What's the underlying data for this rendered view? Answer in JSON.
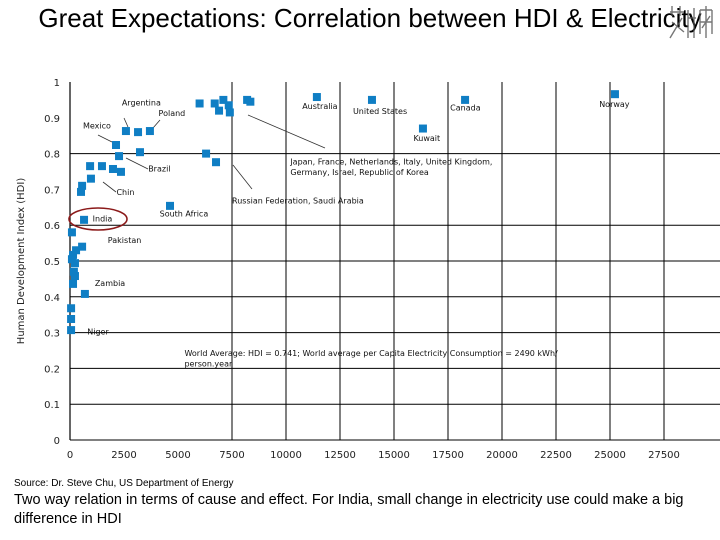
{
  "title": "Great Expectations: Correlation between HDI & Electricity",
  "logo_text": "艾华",
  "source": "Source: Dr. Steve Chu, US Department of Energy",
  "caption": "Two way relation in terms of cause and effect. For India, small change in electricity use could make a big difference in HDI",
  "chart_data": {
    "type": "scatter",
    "title": "",
    "xlabel": "",
    "ylabel": "Human Development Index (HDI)",
    "xlim": [
      0,
      27500
    ],
    "ylim": [
      0,
      1
    ],
    "xticks": [
      "0",
      "2500",
      "5000",
      "7500",
      "10000",
      "12500",
      "15000",
      "17500",
      "20000",
      "22500",
      "25000",
      "27500"
    ],
    "yticks": [
      "0",
      "0.1",
      "0.2",
      "0.3",
      "0.4",
      "0.5",
      "0.6",
      "0.7",
      "0.8",
      "0.9",
      "1"
    ],
    "grid": true,
    "marker_color": "#0f7ec4",
    "highlight_color": "#8b1a1a",
    "points": [
      [
        6000,
        0.94
      ],
      [
        6700,
        0.94
      ],
      [
        6900,
        0.92
      ],
      [
        7100,
        0.95
      ],
      [
        7350,
        0.935
      ],
      [
        7400,
        0.915
      ],
      [
        8200,
        0.95
      ],
      [
        8350,
        0.945
      ],
      [
        11430,
        0.958
      ],
      [
        13980,
        0.95
      ],
      [
        18290,
        0.95
      ],
      [
        16340,
        0.87
      ],
      [
        25230,
        0.966
      ],
      [
        2590,
        0.863
      ],
      [
        3150,
        0.86
      ],
      [
        3700,
        0.863
      ],
      [
        2130,
        0.824
      ],
      [
        2270,
        0.793
      ],
      [
        3240,
        0.804
      ],
      [
        6300,
        0.8
      ],
      [
        6760,
        0.776
      ],
      [
        930,
        0.765
      ],
      [
        1480,
        0.765
      ],
      [
        1990,
        0.757
      ],
      [
        2360,
        0.749
      ],
      [
        970,
        0.73
      ],
      [
        560,
        0.71
      ],
      [
        510,
        0.693
      ],
      [
        4630,
        0.654
      ],
      [
        650,
        0.615
      ],
      [
        90,
        0.58
      ],
      [
        560,
        0.54
      ],
      [
        280,
        0.53
      ],
      [
        140,
        0.517
      ],
      [
        90,
        0.505
      ],
      [
        230,
        0.494
      ],
      [
        180,
        0.47
      ],
      [
        230,
        0.458
      ],
      [
        140,
        0.436
      ],
      [
        690,
        0.408
      ],
      [
        50,
        0.368
      ],
      [
        50,
        0.338
      ],
      [
        50,
        0.307
      ]
    ],
    "annotations": [
      {
        "text": "Argentina",
        "x": 2400,
        "y": 0.935
      },
      {
        "text": "Poland",
        "x": 4100,
        "y": 0.905
      },
      {
        "text": "Mexico",
        "x": 600,
        "y": 0.87
      },
      {
        "text": "Brazil",
        "x": 3620,
        "y": 0.75
      },
      {
        "text": "Chin",
        "x": 2150,
        "y": 0.685
      },
      {
        "text": "India",
        "x": 1050,
        "y": 0.61
      },
      {
        "text": "South Africa",
        "x": 4150,
        "y": 0.625
      },
      {
        "text": "Pakistan",
        "x": 1750,
        "y": 0.55
      },
      {
        "text": "Zambia",
        "x": 1150,
        "y": 0.43
      },
      {
        "text": "Niger",
        "x": 800,
        "y": 0.295
      },
      {
        "text": "Australia",
        "x": 10750,
        "y": 0.925
      },
      {
        "text": "United States",
        "x": 13100,
        "y": 0.91
      },
      {
        "text": "Canada",
        "x": 17600,
        "y": 0.92
      },
      {
        "text": "Kuwait",
        "x": 15900,
        "y": 0.835
      },
      {
        "text": "Norway",
        "x": 24500,
        "y": 0.93
      },
      {
        "text": "Japan, France, Netherlands, Italy, United Kingdom,",
        "x": 10200,
        "y": 0.77
      },
      {
        "text": "Germany, Israel, Republic of Korea",
        "x": 10200,
        "y": 0.74
      },
      {
        "text": "Russian Federation, Saudi Arabia",
        "x": 7500,
        "y": 0.66
      },
      {
        "text": "World Average: HDI = 0.741; World average per Capita Electricity Consumption = 2490 kWh/",
        "x": 5300,
        "y": 0.235
      },
      {
        "text": "person.year",
        "x": 5300,
        "y": 0.205
      }
    ]
  }
}
